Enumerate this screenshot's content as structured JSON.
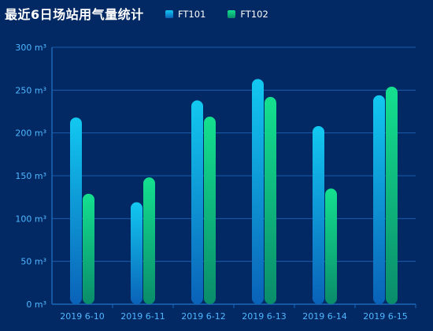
{
  "title": "最近6日场站用气量统计",
  "legend": [
    {
      "label": "FT101",
      "icon": "legend-swatch-blue"
    },
    {
      "label": "FT102",
      "icon": "legend-swatch-green"
    }
  ],
  "colors": {
    "background": "#022963",
    "axis": "#1b67b8",
    "grid": "#1b5cae",
    "tick_text": "#4fb6ff",
    "ft101_top": "#12c8f0",
    "ft101_bottom": "#0a62b8",
    "ft102_top": "#14e08f",
    "ft102_bottom": "#0a8c6a"
  },
  "chart_data": {
    "type": "bar",
    "categories": [
      "2019 6-10",
      "2019 6-11",
      "2019 6-12",
      "2019 6-13",
      "2019 6-14",
      "2019 6-15"
    ],
    "series": [
      {
        "name": "FT101",
        "values": [
          218,
          119,
          238,
          263,
          208,
          244
        ]
      },
      {
        "name": "FT102",
        "values": [
          129,
          148,
          219,
          242,
          135,
          254
        ]
      }
    ],
    "y_ticks": [
      "0 m³",
      "50 m³",
      "100 m³",
      "150 m³",
      "200 m³",
      "250 m³",
      "300 m³"
    ],
    "ylim": [
      0,
      300
    ],
    "grid": true,
    "legend_position": "top"
  }
}
